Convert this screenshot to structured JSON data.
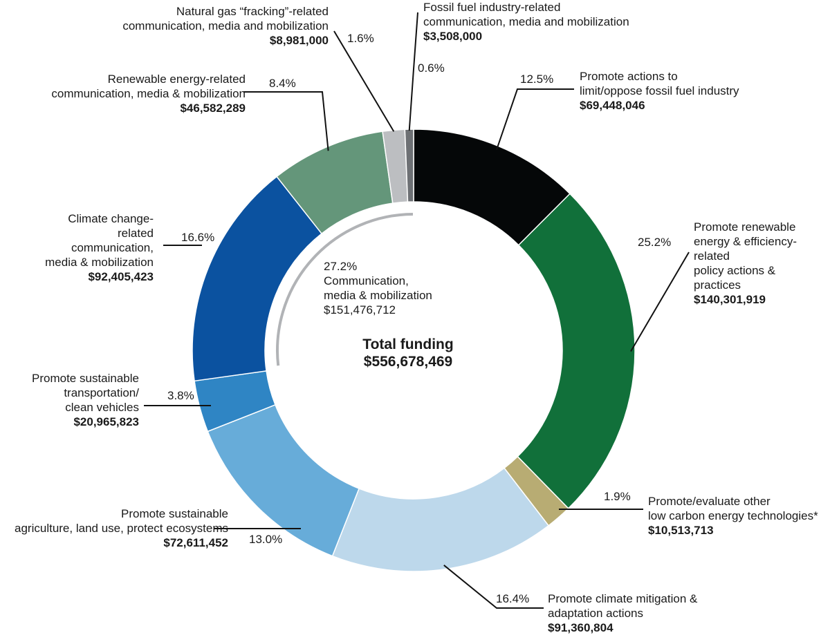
{
  "chart_data": {
    "type": "pie",
    "variant": "donut",
    "center": {
      "title": "Total funding",
      "total": "$556,678,469"
    },
    "group": {
      "percent": "27.2%",
      "label_lines": [
        "Communication,",
        "media & mobilization"
      ],
      "amount": "$151,476,712"
    },
    "slices": [
      {
        "label_lines": [
          "Promote actions to",
          "limit/oppose fossil fuel industry"
        ],
        "percent_text": "12.5%",
        "amount": "$69,448,046",
        "value": 69448046,
        "color": "#050708"
      },
      {
        "label_lines": [
          "Promote renewable",
          "energy & efficiency-",
          "related",
          "policy actions &",
          "practices"
        ],
        "percent_text": "25.2%",
        "amount": "$140,301,919",
        "value": 140301919,
        "color": "#11703a"
      },
      {
        "label_lines": [
          "Promote/evaluate other",
          "low carbon energy technologies*"
        ],
        "percent_text": "1.9%",
        "amount": "$10,513,713",
        "value": 10513713,
        "color": "#b8ac73"
      },
      {
        "label_lines": [
          "Promote climate mitigation &",
          "adaptation actions"
        ],
        "percent_text": "16.4%",
        "amount": "$91,360,804",
        "value": 91360804,
        "color": "#bdd8eb"
      },
      {
        "label_lines": [
          "Promote sustainable",
          "agriculture, land use, protect ecosystems"
        ],
        "percent_text": "13.0%",
        "amount": "$72,611,452",
        "value": 72611452,
        "color": "#67acd9"
      },
      {
        "label_lines": [
          "Promote sustainable",
          "transportation/",
          "clean vehicles"
        ],
        "percent_text": "3.8%",
        "amount": "$20,965,823",
        "value": 20965823,
        "color": "#2f85c4"
      },
      {
        "label_lines": [
          "Climate change-",
          "related",
          "communication,",
          "media & mobilization"
        ],
        "percent_text": "16.6%",
        "amount": "$92,405,423",
        "value": 92405423,
        "color": "#0b52a0"
      },
      {
        "label_lines": [
          "Renewable energy-related",
          "communication, media & mobilization"
        ],
        "percent_text": "8.4%",
        "amount": "$46,582,289",
        "value": 46582289,
        "color": "#64967a"
      },
      {
        "label_lines": [
          "Natural gas “fracking”-related",
          "communication, media and mobilization"
        ],
        "percent_text": "1.6%",
        "amount": "$8,981,000",
        "value": 8981000,
        "color": "#bcbec1"
      },
      {
        "label_lines": [
          "Fossil fuel industry-related",
          "communication, media and mobilization"
        ],
        "percent_text": "0.6%",
        "amount": "$3,508,000",
        "value": 3508000,
        "color": "#6d7074"
      }
    ]
  }
}
